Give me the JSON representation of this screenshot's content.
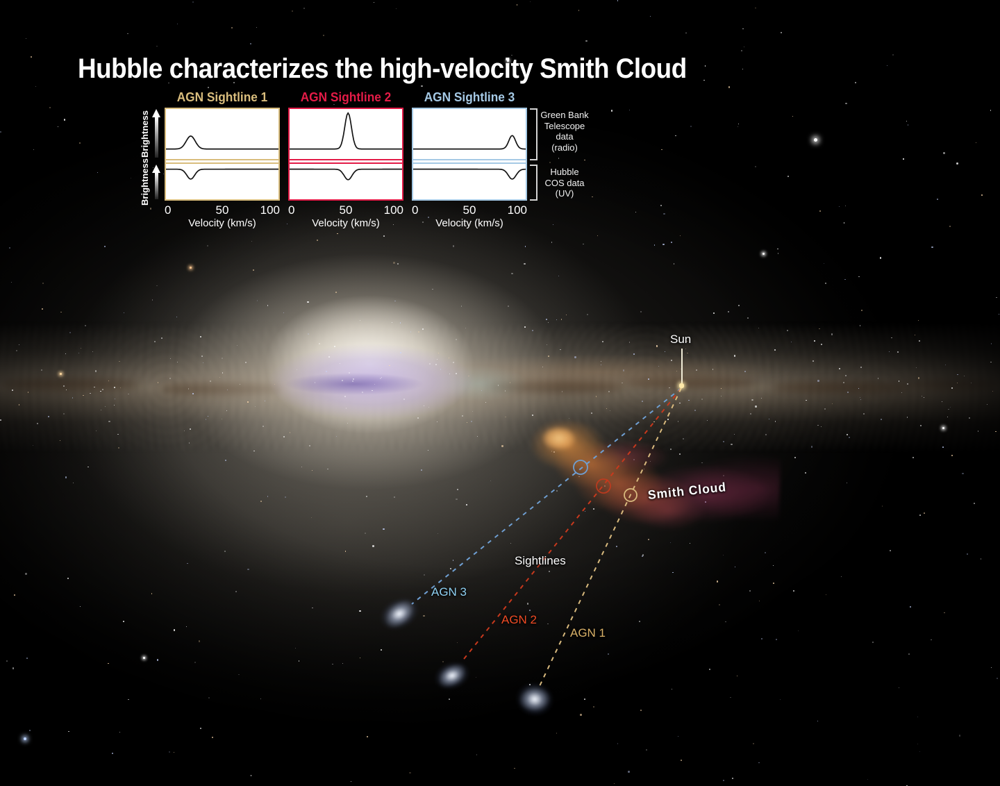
{
  "title": "Hubble characterizes the high-velocity Smith Cloud",
  "spectra": {
    "y_axis_label": "Brightness",
    "x_axis_label": "Velocity (km/s)",
    "x_ticks": [
      "0",
      "50",
      "100"
    ],
    "instrument_labels": {
      "radio": "Green Bank\nTelescope\ndata\n(radio)",
      "uv": "Hubble\nCOS data\n(UV)"
    },
    "panels": [
      {
        "label": "AGN Sightline 1",
        "color": "#d9bd7d"
      },
      {
        "label": "AGN Sightline 2",
        "color": "#e31b47"
      },
      {
        "label": "AGN Sightline 3",
        "color": "#a5c9e5"
      }
    ]
  },
  "chart_data": [
    {
      "type": "line",
      "title": "AGN Sightline 1",
      "xlabel": "Velocity (km/s)",
      "ylabel": "Brightness",
      "xlim": [
        0,
        100
      ],
      "grid": false,
      "series": [
        {
          "name": "Green Bank Telescope data (radio)",
          "feature": "emission peak",
          "center_kms": 22,
          "amplitude": 0.26,
          "sigma_kms": 4
        },
        {
          "name": "Hubble COS data (UV)",
          "feature": "absorption dip",
          "center_kms": 22,
          "amplitude": 0.28,
          "sigma_kms": 3.5
        }
      ]
    },
    {
      "type": "line",
      "title": "AGN Sightline 2",
      "xlabel": "Velocity (km/s)",
      "ylabel": "Brightness",
      "xlim": [
        0,
        100
      ],
      "grid": false,
      "series": [
        {
          "name": "Green Bank Telescope data (radio)",
          "feature": "emission peak",
          "center_kms": 52,
          "amplitude": 0.72,
          "sigma_kms": 3
        },
        {
          "name": "Hubble COS data (UV)",
          "feature": "absorption dip",
          "center_kms": 52,
          "amplitude": 0.3,
          "sigma_kms": 3.5
        }
      ]
    },
    {
      "type": "line",
      "title": "AGN Sightline 3",
      "xlabel": "Velocity (km/s)",
      "ylabel": "Brightness",
      "xlim": [
        0,
        100
      ],
      "grid": false,
      "series": [
        {
          "name": "Green Bank Telescope data (radio)",
          "feature": "emission peak",
          "center_kms": 88,
          "amplitude": 0.27,
          "sigma_kms": 3
        },
        {
          "name": "Hubble COS data (UV)",
          "feature": "absorption dip",
          "center_kms": 88,
          "amplitude": 0.28,
          "sigma_kms": 3.5
        }
      ]
    }
  ],
  "scene": {
    "sun_label": "Sun",
    "sightlines_label": "Sightlines",
    "smith_cloud_label": "Smith Cloud",
    "sightlines": [
      {
        "label": "AGN 1",
        "line_color": "#d9ba7e",
        "label_color": "#d9b168"
      },
      {
        "label": "AGN 2",
        "line_color": "#c8391d",
        "label_color": "#f04b24"
      },
      {
        "label": "AGN 3",
        "line_color": "#6f9fd2",
        "label_color": "#8ed0f2"
      }
    ]
  }
}
